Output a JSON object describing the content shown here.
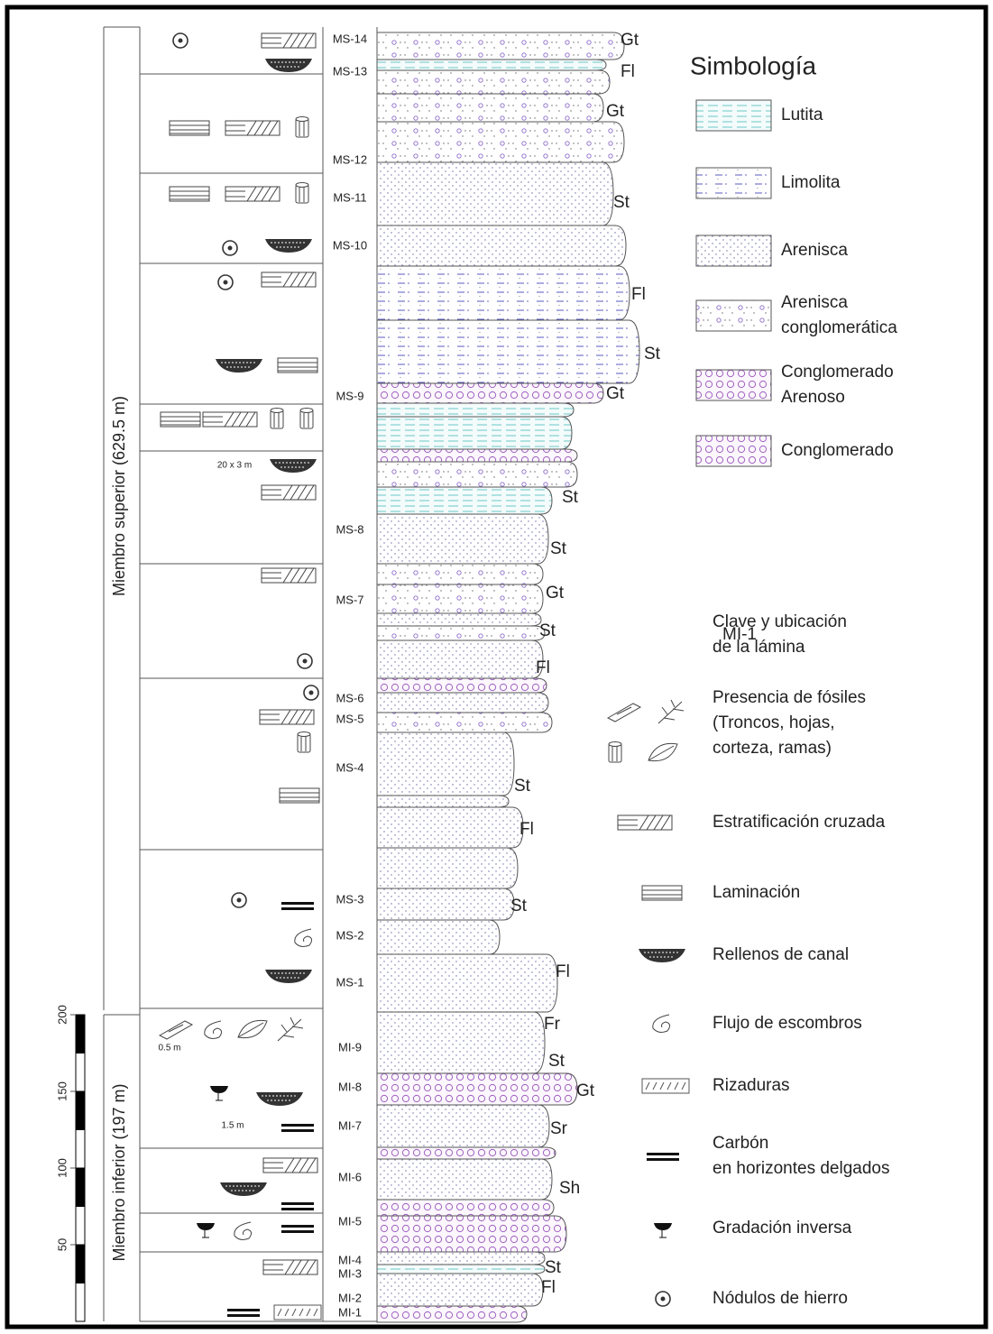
{
  "members": [
    {
      "label": "Miembro superior (629.5 m)"
    },
    {
      "label": "Miembro inferior (197 m)"
    }
  ],
  "scale_labels": [
    "50",
    "100",
    "150",
    "200"
  ],
  "samples": [
    "MS-14",
    "MS-13",
    "MS-12",
    "MS-11",
    "MS-10",
    "MS-9",
    "MS-8",
    "MS-7",
    "MS-6",
    "MS-5",
    "MS-4",
    "MS-3",
    "MS-2",
    "MS-1",
    "MI-9",
    "MI-8",
    "MI-7",
    "MI-6",
    "MI-5",
    "MI-4",
    "MI-3",
    "MI-2",
    "MI-1"
  ],
  "facies": [
    "Gt",
    "Fl",
    "Gt",
    "St",
    "Fl",
    "St",
    "Gt",
    "St",
    "St",
    "Gt",
    "St",
    "Fl",
    "St",
    "Fl",
    "St",
    "Fl",
    "Fr",
    "St",
    "Gt",
    "Sr",
    "Sh",
    "St",
    "Fl"
  ],
  "annotations": [
    "20 x 3 m",
    "0.5 m",
    "1.5 m"
  ],
  "legend": {
    "title": "Simbología",
    "lithology": [
      [
        "Lutita"
      ],
      [
        "Limolita"
      ],
      [
        "Arenisca"
      ],
      [
        "Arenisca",
        "conglomerática"
      ],
      [
        "Conglomerado",
        "Arenoso"
      ],
      [
        "Conglomerado"
      ]
    ],
    "key_code": "MI-1",
    "symbols": [
      [
        "Clave y ubicación",
        "de la lámina"
      ],
      [
        "Presencia de fósiles",
        "(Troncos, hojas,",
        "corteza, ramas)"
      ],
      [
        "Estratificación cruzada"
      ],
      [
        "Laminación"
      ],
      [
        "Rellenos de canal"
      ],
      [
        "Flujo de escombros"
      ],
      [
        "Rizaduras"
      ],
      [
        "Carbón",
        "en horizontes delgados"
      ],
      [
        "Gradación inversa"
      ],
      [
        "Nódulos de hierro"
      ]
    ]
  }
}
